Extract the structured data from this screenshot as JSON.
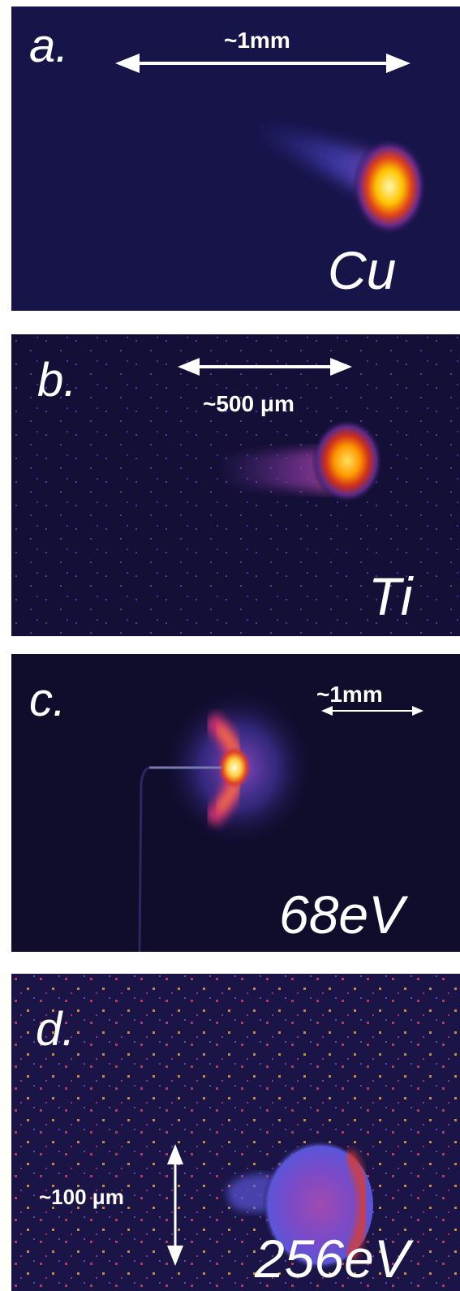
{
  "figure": {
    "panels": [
      {
        "letter": "a.",
        "scale": "~1mm",
        "element": "Cu"
      },
      {
        "letter": "b.",
        "scale": "~500 μm",
        "element": "Ti"
      },
      {
        "letter": "c.",
        "scale": "~1mm",
        "element": "68eV"
      },
      {
        "letter": "d.",
        "scale": "~100 μm",
        "element": "256eV"
      }
    ]
  },
  "colors": {
    "background": "#14123f",
    "hot_core": "#fff2a0",
    "hot_mid": "#ffb000",
    "warm": "#e03a10",
    "glow": "#7a3aa0",
    "halo": "#4a4ad0",
    "annotation": "#ffffff"
  }
}
